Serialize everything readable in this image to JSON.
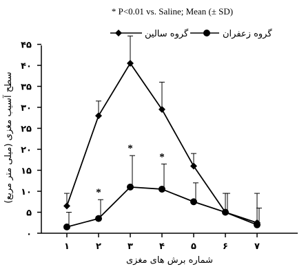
{
  "chart_data": {
    "type": "line",
    "title": "",
    "note": "* P<0.01 vs. Saline; Mean (± SD)",
    "xlabel": "شماره برش های مغزی",
    "ylabel": "سطح آسیب مغزی (میلی متر مربع)",
    "categories": [
      "۱",
      "۲",
      "۳",
      "۴",
      "۵",
      "۶",
      "۷"
    ],
    "x": [
      1,
      2,
      3,
      4,
      5,
      6,
      7
    ],
    "ylim": [
      0,
      47
    ],
    "yticks": [
      0,
      5,
      10,
      15,
      20,
      25,
      30,
      35,
      40,
      45
    ],
    "ytick_labels": [
      "۰",
      "۵",
      "۱۰",
      "۱۵",
      "۲۰",
      "۲۵",
      "۳۰",
      "۳۵",
      "۴۰",
      "۴۵"
    ],
    "grid": false,
    "legend_position": "top",
    "series": [
      {
        "name": "گروه سالین",
        "marker": "diamond",
        "color": "#000000",
        "values": [
          6.5,
          28,
          40.5,
          29.5,
          16,
          5,
          2.5
        ],
        "sd": [
          3,
          3.5,
          6.5,
          6.5,
          3,
          4.5,
          7
        ],
        "significant": [
          false,
          false,
          false,
          false,
          false,
          false,
          false
        ]
      },
      {
        "name": "گروه زعفران",
        "marker": "circle",
        "color": "#000000",
        "values": [
          1.5,
          3.5,
          11,
          10.5,
          7.5,
          5,
          2
        ],
        "sd": [
          3.5,
          4.5,
          7.5,
          6,
          4.5,
          4.5,
          4
        ],
        "significant": [
          false,
          true,
          true,
          true,
          false,
          false,
          false
        ]
      }
    ],
    "significance_marker": "*"
  }
}
